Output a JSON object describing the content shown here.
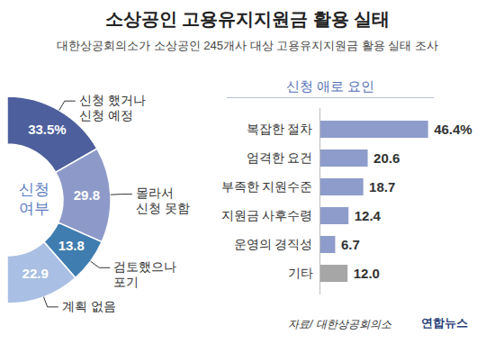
{
  "title": "소상공인 고용유지지원금 활용 실태",
  "subtitle": "대한상공회의소가 소상공인 245개사 대상 고용유지지원금 활용 실태 조사",
  "source": "자료/ 대한상공회의소",
  "credit": "연합뉴스",
  "chart_data": [
    {
      "type": "pie",
      "title": "신청 여부",
      "categories": [
        "신청 했거나 신청 예정",
        "몰라서 신청 못함",
        "검토했으나 포기",
        "계획 없음"
      ],
      "values": [
        33.5,
        29.8,
        13.8,
        22.9
      ],
      "value_labels": [
        "33.5%",
        "29.8",
        "13.8",
        "22.9"
      ],
      "colors": [
        "#4d5f9c",
        "#8d9ac9",
        "#3f7db0",
        "#a9bfe3"
      ],
      "data_labels": true
    },
    {
      "type": "bar",
      "title": "신청 애로 요인",
      "orientation": "horizontal",
      "categories": [
        "복잡한 절차",
        "엄격한 요건",
        "부족한 지원수준",
        "지원금 사후수령",
        "운영의 경직성",
        "기타"
      ],
      "values": [
        46.4,
        20.6,
        18.7,
        12.4,
        6.7,
        12.0
      ],
      "value_labels": [
        "46.4%",
        "20.6",
        "18.7",
        "12.4",
        "6.7",
        "12.0"
      ],
      "colors": [
        "#8e9ccb",
        "#8e9ccb",
        "#8e9ccb",
        "#8e9ccb",
        "#8e9ccb",
        "#a6a6a6"
      ],
      "xlim": [
        0,
        50
      ],
      "tick_labels": "y",
      "data_labels": true
    }
  ]
}
